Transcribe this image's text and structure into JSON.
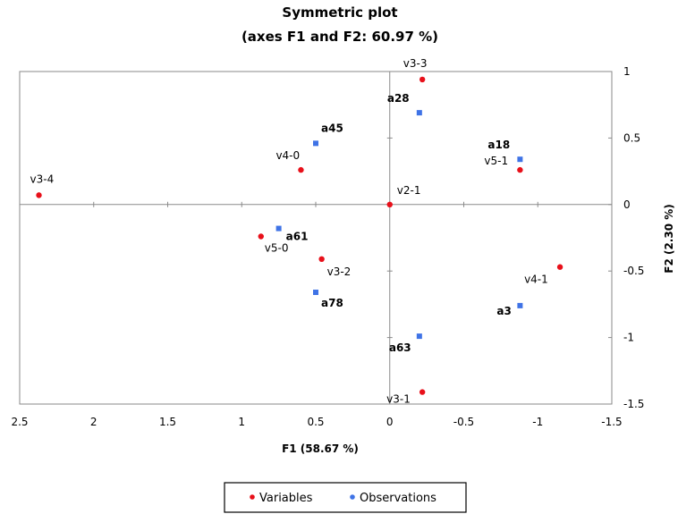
{
  "chart_data": {
    "type": "scatter",
    "title_line1": "Symmetric plot",
    "title_line2": "(axes F1 and F2: 60.97 %)",
    "xlabel": "F1 (58.67 %)",
    "ylabel": "F2 (2.30 %)",
    "xlim": [
      2.5,
      -1.5
    ],
    "ylim": [
      -1.5,
      1
    ],
    "x_reversed": true,
    "xticks": [
      2.5,
      2,
      1.5,
      1,
      0.5,
      0,
      -0.5,
      -1,
      -1.5
    ],
    "yticks": [
      -1.5,
      -1,
      -0.5,
      0,
      0.5,
      1
    ],
    "xtick_labels": [
      "2.5",
      "2",
      "1.5",
      "1",
      "0.5",
      "0",
      "-0.5",
      "-1",
      "-1.5"
    ],
    "ytick_labels": [
      "-1.5",
      "-1",
      "-0.5",
      "0",
      "0.5",
      "1"
    ],
    "grid": false,
    "legend_position": "bottom",
    "series": [
      {
        "name": "Variables",
        "color": "#e8101a",
        "points": [
          {
            "label": "v3-3",
            "x": -0.22,
            "y": 0.94
          },
          {
            "label": "v4-0",
            "x": 0.6,
            "y": 0.26
          },
          {
            "label": "v5-1",
            "x": -0.88,
            "y": 0.26
          },
          {
            "label": "v3-4",
            "x": 2.37,
            "y": 0.07
          },
          {
            "label": "v2-1",
            "x": 0.0,
            "y": 0.0
          },
          {
            "label": "v5-0",
            "x": 0.87,
            "y": -0.24
          },
          {
            "label": "v3-2",
            "x": 0.46,
            "y": -0.41
          },
          {
            "label": "v4-1",
            "x": -1.15,
            "y": -0.47
          },
          {
            "label": "v3-1",
            "x": -0.22,
            "y": -1.41
          }
        ]
      },
      {
        "name": "Observations",
        "color": "#3f73e6",
        "points": [
          {
            "label": "a28",
            "x": -0.2,
            "y": 0.69
          },
          {
            "label": "a45",
            "x": 0.5,
            "y": 0.46
          },
          {
            "label": "a18",
            "x": -0.88,
            "y": 0.34
          },
          {
            "label": "a61",
            "x": 0.75,
            "y": -0.18
          },
          {
            "label": "a78",
            "x": 0.5,
            "y": -0.66
          },
          {
            "label": "a3",
            "x": -0.88,
            "y": -0.76
          },
          {
            "label": "a63",
            "x": -0.2,
            "y": -0.99
          }
        ]
      }
    ]
  }
}
